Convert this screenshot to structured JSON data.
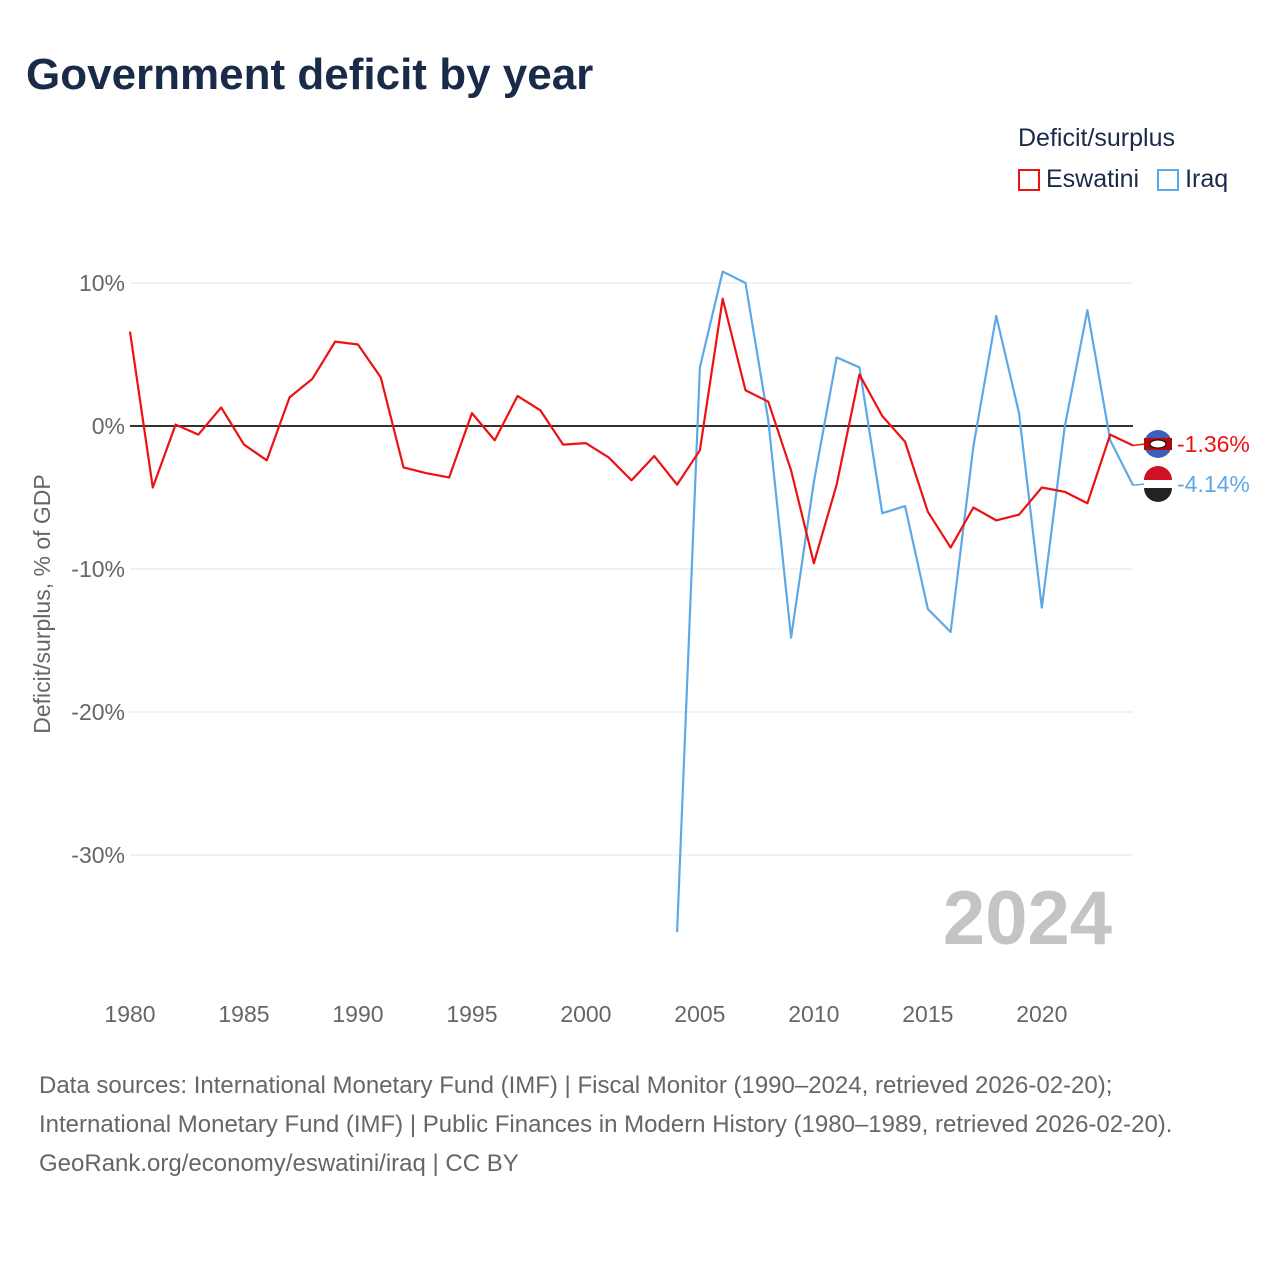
{
  "chart_data": {
    "type": "line",
    "title": "Government deficit by year",
    "xlabel": "",
    "ylabel": "Deficit/surplus, % of GDP",
    "xlim": [
      1980,
      2024
    ],
    "ylim": [
      -37,
      13
    ],
    "xticks": [
      1980,
      1985,
      1990,
      1995,
      2000,
      2005,
      2010,
      2015,
      2020
    ],
    "xtick_labels": [
      "1980",
      "1985",
      "1990",
      "1995",
      "2000",
      "2005",
      "2010",
      "2015",
      "2020"
    ],
    "yticks": [
      10,
      0,
      -10,
      -20,
      -30
    ],
    "ytick_labels": [
      "10%",
      "0%",
      "-10%",
      "-20%",
      "-30%"
    ],
    "legend_title": "Deficit/surplus",
    "legend_position": "top-right",
    "year_watermark": "2024",
    "series": [
      {
        "name": "Eswatini",
        "color": "#ee1111",
        "end_label": "-1.36%",
        "x": [
          1980,
          1981,
          1982,
          1983,
          1984,
          1985,
          1986,
          1987,
          1988,
          1989,
          1990,
          1991,
          1992,
          1993,
          1994,
          1995,
          1996,
          1997,
          1998,
          1999,
          2000,
          2001,
          2002,
          2003,
          2004,
          2005,
          2006,
          2007,
          2008,
          2009,
          2010,
          2011,
          2012,
          2013,
          2014,
          2015,
          2016,
          2017,
          2018,
          2019,
          2020,
          2021,
          2022,
          2023,
          2024
        ],
        "values": [
          6.6,
          -4.3,
          0.1,
          -0.6,
          1.3,
          -1.3,
          -2.4,
          2.0,
          3.3,
          5.9,
          5.7,
          3.4,
          -2.9,
          -3.3,
          -3.6,
          0.9,
          -1.0,
          2.1,
          1.1,
          -1.3,
          -1.2,
          -2.2,
          -3.8,
          -2.1,
          -4.1,
          -1.7,
          8.9,
          2.5,
          1.7,
          -3.1,
          -9.6,
          -4.1,
          3.6,
          0.7,
          -1.1,
          -6.0,
          -8.5,
          -5.7,
          -6.6,
          -6.2,
          -4.3,
          -4.6,
          -5.4,
          -0.6,
          -1.36
        ]
      },
      {
        "name": "Iraq",
        "color": "#5ea8e8",
        "end_label": "-4.14%",
        "x": [
          2004,
          2005,
          2006,
          2007,
          2008,
          2009,
          2010,
          2011,
          2012,
          2013,
          2014,
          2015,
          2016,
          2017,
          2018,
          2019,
          2020,
          2021,
          2022,
          2023,
          2024
        ],
        "values": [
          -35.4,
          4.1,
          10.8,
          10.0,
          0.4,
          -14.8,
          -3.9,
          4.8,
          4.1,
          -6.1,
          -5.6,
          -12.8,
          -14.4,
          -1.4,
          7.7,
          0.9,
          -12.7,
          -0.1,
          8.1,
          -1.0,
          -4.14
        ]
      }
    ]
  },
  "footer": {
    "sources": "Data sources: International Monetary Fund (IMF) | Fiscal Monitor (1990–2024, retrieved 2026-02-20); International Monetary Fund (IMF) | Public Finances in Modern History (1980–1989, retrieved 2026-02-20).",
    "credit": "GeoRank.org/economy/eswatini/iraq | CC BY"
  }
}
